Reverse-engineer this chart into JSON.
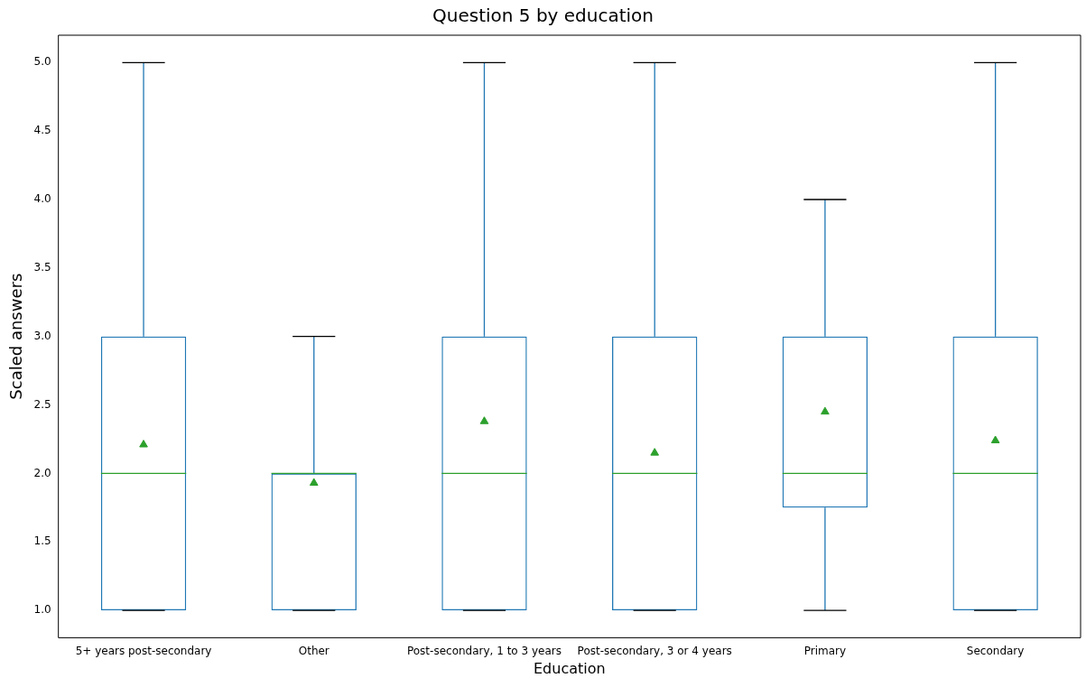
{
  "chart_data": {
    "type": "box",
    "title": "Question 5 by education",
    "xlabel": "Education",
    "ylabel": "Scaled answers",
    "categories": [
      "5+ years post-secondary",
      "Other",
      "Post-secondary, 1 to 3 years",
      "Post-secondary, 3 or 4 years",
      "Primary",
      "Secondary"
    ],
    "series": [
      {
        "color": "#1f77b4",
        "boxes": [
          {
            "low": 1,
            "q1": 1,
            "median": 2,
            "q3": 3,
            "high": 5,
            "mean": 2.21
          },
          {
            "low": 1,
            "q1": 1,
            "median": 2,
            "q3": 2,
            "high": 3,
            "mean": 1.93
          },
          {
            "low": 1,
            "q1": 1,
            "median": 2,
            "q3": 3,
            "high": 5,
            "mean": 2.38
          },
          {
            "low": 1,
            "q1": 1,
            "median": 2,
            "q3": 3,
            "high": 5,
            "mean": 2.15
          },
          {
            "low": 1,
            "q1": 1.75,
            "median": 2,
            "q3": 3,
            "high": 4,
            "mean": 2.45
          },
          {
            "low": 1,
            "q1": 1,
            "median": 2,
            "q3": 3,
            "high": 5,
            "mean": 2.24
          }
        ]
      }
    ],
    "ylim": [
      0.8,
      5.2
    ],
    "yticks": [
      {
        "value": 1,
        "label": "1.0"
      },
      {
        "value": 1.5,
        "label": "1.5"
      },
      {
        "value": 2,
        "label": "2.0"
      },
      {
        "value": 2.5,
        "label": "2.5"
      },
      {
        "value": 3,
        "label": "3.0"
      },
      {
        "value": 3.5,
        "label": "3.5"
      },
      {
        "value": 4,
        "label": "4.0"
      },
      {
        "value": 4.5,
        "label": "4.5"
      },
      {
        "value": 5,
        "label": "5.0"
      }
    ],
    "grid": false,
    "legend": false,
    "marker": "triangle"
  }
}
